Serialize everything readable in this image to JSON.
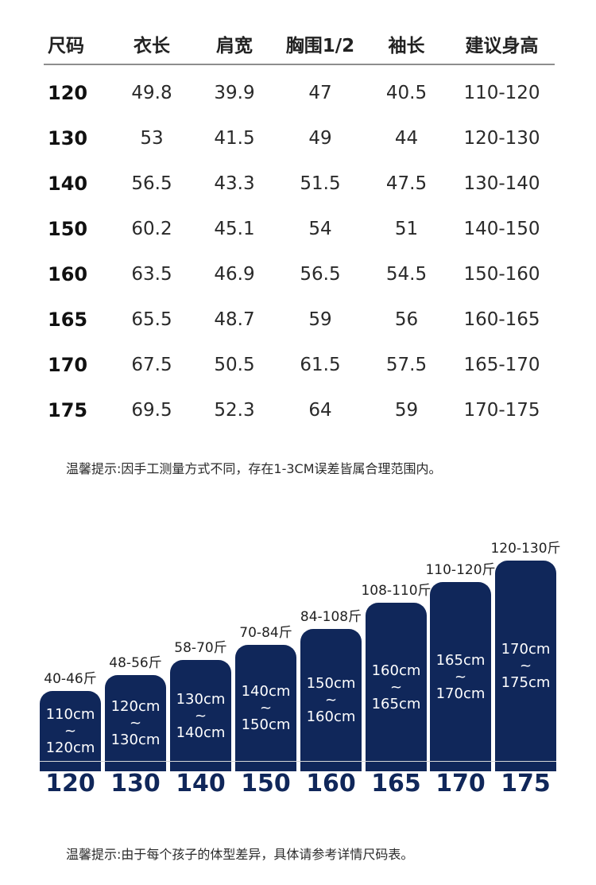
{
  "table": {
    "headers": [
      "尺码",
      "衣长",
      "肩宽",
      "胸围1/2",
      "袖长",
      "建议身高"
    ],
    "rows": [
      [
        "120",
        "49.8",
        "39.9",
        "47",
        "40.5",
        "110-120"
      ],
      [
        "130",
        "53",
        "41.5",
        "49",
        "44",
        "120-130"
      ],
      [
        "140",
        "56.5",
        "43.3",
        "51.5",
        "47.5",
        "130-140"
      ],
      [
        "150",
        "60.2",
        "45.1",
        "54",
        "51",
        "140-150"
      ],
      [
        "160",
        "63.5",
        "46.9",
        "56.5",
        "54.5",
        "150-160"
      ],
      [
        "165",
        "65.5",
        "48.7",
        "59",
        "56",
        "160-165"
      ],
      [
        "170",
        "67.5",
        "50.5",
        "61.5",
        "57.5",
        "165-170"
      ],
      [
        "175",
        "69.5",
        "52.3",
        "64",
        "59",
        "170-175"
      ]
    ]
  },
  "note1": "温馨提示:因手工测量方式不同，存在1-3CM误差皆属合理范围内。",
  "note2": "温馨提示:由于每个孩子的体型差异，具体请参考详情尺码表。",
  "chart_data": {
    "type": "bar",
    "categories": [
      "120",
      "130",
      "140",
      "150",
      "160",
      "165",
      "170",
      "175"
    ],
    "weights": [
      "40-46斤",
      "48-56斤",
      "58-70斤",
      "70-84斤",
      "84-108斤",
      "108-110斤",
      "110-120斤",
      "120-130斤"
    ],
    "height_ranges": [
      [
        "110cm",
        "~",
        "120cm"
      ],
      [
        "120cm",
        "~",
        "130cm"
      ],
      [
        "130cm",
        "~",
        "140cm"
      ],
      [
        "140cm",
        "~",
        "150cm"
      ],
      [
        "150cm",
        "~",
        "160cm"
      ],
      [
        "160cm",
        "~",
        "165cm"
      ],
      [
        "165cm",
        "~",
        "170cm"
      ],
      [
        "170cm",
        "~",
        "175cm"
      ]
    ],
    "bar_color": "#10275a"
  },
  "colors": {
    "accent": "#10275a",
    "text": "#1b1b1b"
  }
}
